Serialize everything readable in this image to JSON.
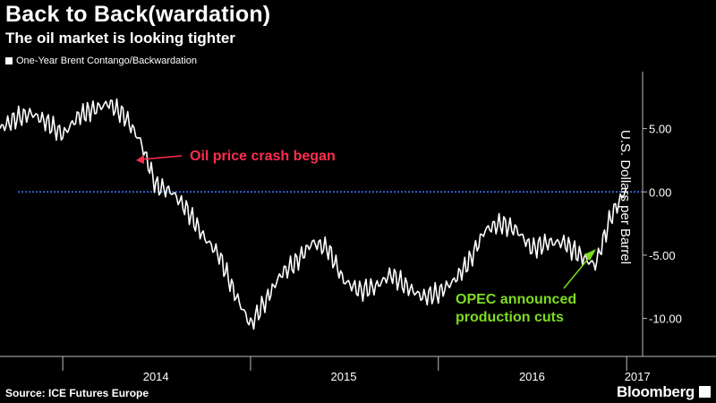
{
  "title": "Back to Back(wardation)",
  "subtitle": "The oil market is looking tighter",
  "source": "Source: ICE Futures Europe",
  "brand": "Bloomberg",
  "chart_data": {
    "type": "line",
    "legend_position": "top-left",
    "grid": false,
    "ylabel": "U.S. Dollars per Barrel",
    "ylim": [
      -13.0,
      9.5
    ],
    "y_ticks": [
      5.0,
      0.0,
      -5.0,
      -10.0
    ],
    "y_tick_labels": [
      "5.00",
      "0.00",
      "-5.00",
      "-10.00"
    ],
    "x_tick_labels": [
      "2014",
      "2015",
      "2016",
      "2017"
    ],
    "zero_line": 0.0,
    "colors": {
      "line": "#ffffff",
      "zero_line": "#3b7bff",
      "crash_annotation": "#ff2e4d",
      "opec_annotation": "#7ddc1f"
    },
    "annotations": [
      {
        "id": "crash",
        "text": "Oil price crash began",
        "x": "2014-07",
        "y": 2.0
      },
      {
        "id": "opec",
        "lines": [
          "OPEC announced",
          "production cuts"
        ],
        "x": "2016-11",
        "y": -5.5
      }
    ],
    "series": [
      {
        "name": "One-Year Brent Contango/Backwardation",
        "x": [
          "2013-09",
          "2013-10",
          "2013-11",
          "2013-12",
          "2014-01",
          "2014-02",
          "2014-03",
          "2014-04",
          "2014-05",
          "2014-06",
          "2014-07",
          "2014-08",
          "2014-09",
          "2014-10",
          "2014-11",
          "2014-12",
          "2015-01",
          "2015-02",
          "2015-03",
          "2015-04",
          "2015-05",
          "2015-06",
          "2015-07",
          "2015-08",
          "2015-09",
          "2015-10",
          "2015-11",
          "2015-12",
          "2016-01",
          "2016-02",
          "2016-03",
          "2016-04",
          "2016-05",
          "2016-06",
          "2016-07",
          "2016-08",
          "2016-09",
          "2016-10",
          "2016-11",
          "2016-12",
          "2017-01"
        ],
        "y": [
          5.0,
          5.8,
          6.2,
          5.5,
          4.5,
          6.0,
          6.5,
          7.0,
          6.0,
          4.0,
          0.5,
          0.0,
          -1.5,
          -3.5,
          -5.0,
          -8.0,
          -10.5,
          -8.5,
          -6.5,
          -5.5,
          -4.0,
          -4.5,
          -7.0,
          -7.8,
          -7.5,
          -6.5,
          -7.5,
          -8.3,
          -8.0,
          -7.0,
          -5.5,
          -3.0,
          -2.5,
          -3.0,
          -4.5,
          -4.0,
          -4.0,
          -5.0,
          -5.8,
          -2.0,
          0.3
        ]
      }
    ]
  }
}
